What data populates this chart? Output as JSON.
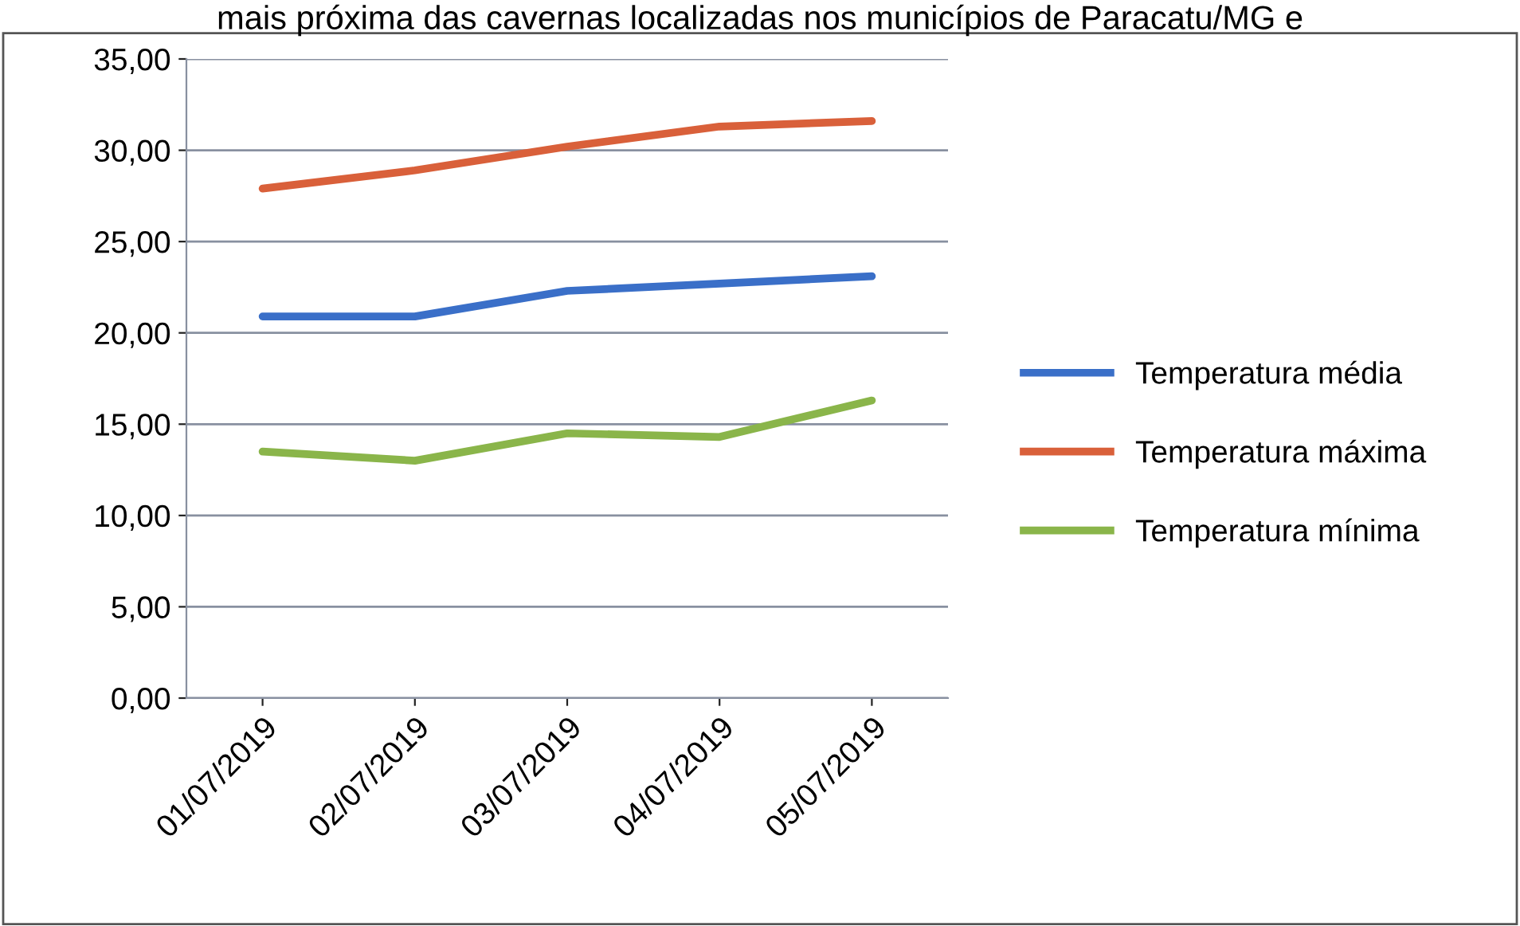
{
  "chart_data": {
    "type": "line",
    "title": "mais próxima das cavernas localizadas nos municípios de Paracatu/MG e",
    "categories": [
      "01/07/2019",
      "02/07/2019",
      "03/07/2019",
      "04/07/2019",
      "05/07/2019"
    ],
    "series": [
      {
        "name": "Temperatura média",
        "color": "#3a6fc8",
        "values": [
          20.9,
          20.9,
          22.3,
          22.7,
          23.1
        ]
      },
      {
        "name": "Temperatura máxima",
        "color": "#d9603a",
        "values": [
          27.9,
          28.9,
          30.2,
          31.3,
          31.6
        ]
      },
      {
        "name": "Temperatura mínima",
        "color": "#8ab54a",
        "values": [
          13.5,
          13.0,
          14.5,
          14.3,
          16.3
        ]
      }
    ],
    "ylim": [
      0,
      35
    ],
    "yticks": [
      {
        "value": 0,
        "label": "0,00"
      },
      {
        "value": 5,
        "label": "5,00"
      },
      {
        "value": 10,
        "label": "10,00"
      },
      {
        "value": 15,
        "label": "15,00"
      },
      {
        "value": 20,
        "label": "20,00"
      },
      {
        "value": 25,
        "label": "25,00"
      },
      {
        "value": 30,
        "label": "30,00"
      },
      {
        "value": 35,
        "label": "35,00"
      }
    ],
    "grid": "y",
    "legend": "right",
    "marker": "none",
    "line_style": "solid"
  }
}
